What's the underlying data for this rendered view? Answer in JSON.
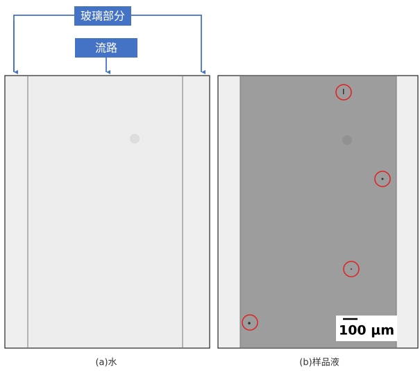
{
  "labels": {
    "glass": "玻璃部分",
    "channel": "流路"
  },
  "scale_bar": "100 µm",
  "captions": {
    "a": "(a)水",
    "b": "(b)样品液"
  }
}
